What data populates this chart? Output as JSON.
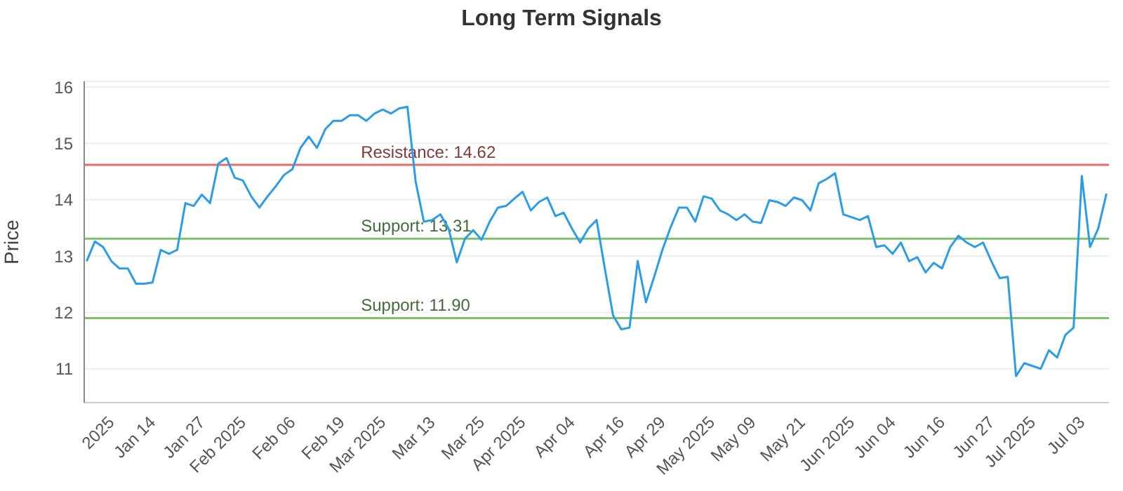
{
  "chart_data": {
    "type": "line",
    "title": "Long Term Signals",
    "ylabel": "Price",
    "categories": [
      null,
      null,
      null,
      "2025",
      null,
      null,
      null,
      null,
      "Jan 14",
      null,
      null,
      null,
      null,
      null,
      "Jan 27",
      null,
      null,
      null,
      null,
      "Feb 2025",
      null,
      null,
      null,
      null,
      null,
      "Feb 06",
      null,
      null,
      null,
      null,
      null,
      "Feb 19",
      null,
      null,
      null,
      null,
      "Mar 2025",
      null,
      null,
      null,
      null,
      null,
      "Mar 13",
      null,
      null,
      null,
      null,
      null,
      "Mar 25",
      null,
      null,
      null,
      null,
      "Apr 2025",
      null,
      null,
      null,
      null,
      null,
      "Apr 04",
      null,
      null,
      null,
      null,
      null,
      "Apr 16",
      null,
      null,
      null,
      null,
      "Apr 29",
      null,
      null,
      null,
      null,
      null,
      "May 2025",
      null,
      null,
      null,
      null,
      "May 09",
      null,
      null,
      null,
      null,
      null,
      "May 21",
      null,
      null,
      null,
      null,
      null,
      "Jun 2025",
      null,
      null,
      null,
      null,
      "Jun 04",
      null,
      null,
      null,
      null,
      null,
      "Jun 16",
      null,
      null,
      null,
      null,
      null,
      "Jun 27",
      null,
      null,
      null,
      null,
      "Jul 2025",
      null,
      null,
      null,
      null,
      null,
      "Jul 03",
      null,
      null,
      null
    ],
    "series": [
      {
        "color": "#2b9de8",
        "values": [
          12.91,
          13.26,
          13.16,
          12.91,
          12.78,
          12.78,
          12.51,
          12.51,
          12.53,
          13.11,
          13.04,
          13.11,
          13.94,
          13.89,
          14.09,
          13.94,
          14.64,
          14.74,
          14.39,
          14.34,
          14.06,
          13.86,
          14.06,
          14.24,
          14.44,
          14.54,
          14.92,
          15.12,
          14.92,
          15.25,
          15.4,
          15.4,
          15.5,
          15.5,
          15.4,
          15.53,
          15.6,
          15.53,
          15.62,
          15.65,
          14.32,
          13.61,
          13.64,
          13.74,
          13.49,
          12.89,
          13.31,
          13.46,
          13.29,
          13.61,
          13.86,
          13.89,
          14.02,
          14.14,
          13.81,
          13.96,
          14.04,
          13.71,
          13.77,
          13.49,
          13.24,
          13.49,
          13.64,
          12.78,
          11.95,
          11.7,
          11.73,
          12.91,
          12.18,
          12.63,
          13.11,
          13.51,
          13.86,
          13.86,
          13.61,
          14.06,
          14.02,
          13.81,
          13.74,
          13.64,
          13.74,
          13.61,
          13.59,
          13.99,
          13.96,
          13.89,
          14.04,
          13.99,
          13.81,
          14.29,
          14.37,
          14.47,
          13.74,
          13.69,
          13.64,
          13.71,
          13.16,
          13.19,
          13.04,
          13.24,
          12.91,
          12.98,
          12.71,
          12.88,
          12.78,
          13.16,
          13.36,
          13.24,
          13.16,
          13.24,
          12.91,
          12.61,
          12.63,
          10.87,
          11.1,
          11.05,
          11.0,
          11.33,
          11.2,
          11.6,
          11.73,
          14.42,
          13.16,
          13.49,
          14.11
        ]
      }
    ],
    "ylim": [
      10.4,
      16.1
    ],
    "yticks": [
      11,
      12,
      13,
      14,
      15,
      16
    ],
    "grid": "y",
    "ref_lines": [
      {
        "axis": "y",
        "value": 14.62,
        "label": "Resistance: 14.62",
        "color": "#e86a6a"
      },
      {
        "axis": "y",
        "value": 13.31,
        "label": "Support: 13.31",
        "color": "#7cc26b"
      },
      {
        "axis": "y",
        "value": 11.9,
        "label": "Support: 11.90",
        "color": "#7cc26b"
      }
    ]
  }
}
